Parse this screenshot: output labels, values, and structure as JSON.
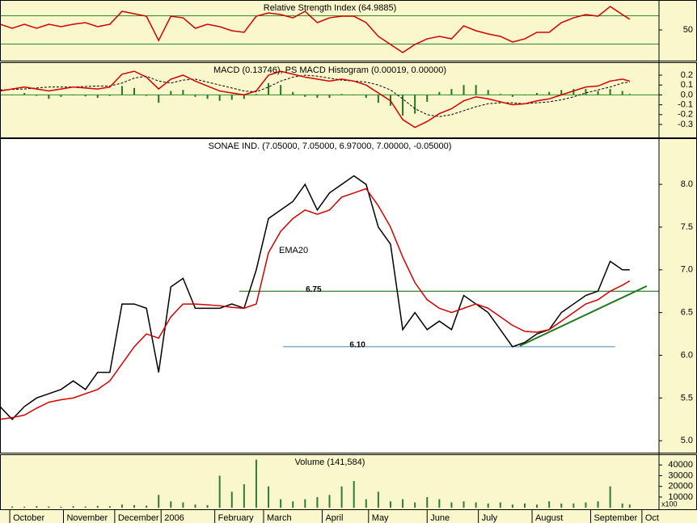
{
  "chart_data": [
    {
      "type": "line",
      "title": "Relative Strength Index (64.9885)",
      "x": [
        0,
        5,
        10,
        15,
        20,
        25,
        30,
        35,
        40,
        45,
        50,
        55,
        60,
        65,
        70,
        75,
        80,
        85,
        90,
        95,
        100,
        105,
        110,
        115,
        120,
        125,
        130,
        135,
        140,
        145,
        150,
        155,
        160,
        165,
        170,
        175,
        180,
        185,
        190,
        195,
        200,
        205,
        210,
        215,
        220,
        225,
        230,
        235,
        240,
        245,
        250,
        255,
        258
      ],
      "xlim": [
        0,
        270
      ],
      "ylim": [
        6.6,
        92.3
      ],
      "yticks": [
        50
      ],
      "hlines": [
        {
          "value": 70,
          "color": "#2e8b2e"
        },
        {
          "value": 30,
          "color": "#2e8b2e"
        }
      ],
      "series": [
        {
          "color": "#d40000",
          "values": [
            58,
            52.3,
            58,
            52.3,
            58,
            54.6,
            58,
            60.3,
            54.6,
            58,
            76.3,
            72.9,
            69.4,
            35.1,
            69.4,
            67.1,
            52.3,
            58,
            54.6,
            48.9,
            46.6,
            69.4,
            74,
            71.7,
            67.1,
            76.3,
            60.3,
            67.1,
            69.4,
            69.4,
            60.3,
            40.9,
            29.4,
            18,
            29.4,
            37.4,
            40.9,
            37.4,
            55.7,
            48.9,
            44.3,
            40.9,
            32.9,
            37.4,
            46.6,
            46.6,
            60.3,
            67.1,
            71.7,
            69.4,
            83.1,
            71.7,
            65
          ]
        }
      ]
    },
    {
      "type": "line",
      "title": "MACD (0.13746), PS MACD Histogram (0.00019, 0.00000)",
      "x": [
        0,
        5,
        10,
        15,
        20,
        25,
        30,
        35,
        40,
        45,
        50,
        55,
        60,
        65,
        70,
        75,
        80,
        85,
        90,
        95,
        100,
        105,
        110,
        115,
        120,
        125,
        130,
        135,
        140,
        145,
        150,
        155,
        160,
        165,
        170,
        175,
        180,
        185,
        190,
        195,
        200,
        205,
        210,
        215,
        220,
        225,
        230,
        235,
        240,
        245,
        250,
        255,
        258
      ],
      "xlim": [
        0,
        270
      ],
      "ylim": [
        -0.431,
        0.331
      ],
      "yticks": [
        0.2,
        0.1,
        {
          "value": 0,
          "label": "0.0"
        },
        -0.1,
        -0.2,
        -0.3
      ],
      "hlines": [
        {
          "value": 0,
          "color": "#2e8b2e"
        }
      ],
      "series": [
        {
          "kind": "bar",
          "color": "#1f7a1f",
          "values": [
            -0.01,
            0.005,
            0.02,
            -0.01,
            -0.04,
            -0.02,
            0,
            -0.015,
            -0.03,
            -0.01,
            0.09,
            0.07,
            -0.01,
            -0.08,
            0.04,
            0.05,
            -0.02,
            -0.04,
            -0.06,
            -0.05,
            -0.04,
            0.01,
            0.12,
            0.1,
            0.03,
            -0.02,
            -0.03,
            -0.03,
            0.01,
            0,
            -0.03,
            -0.08,
            -0.11,
            -0.21,
            -0.19,
            -0.07,
            0.03,
            0.06,
            0.1,
            0.1,
            0.05,
            0.01,
            -0.02,
            0,
            0.02,
            0.03,
            0.05,
            0.06,
            0.06,
            0.04,
            0.06,
            0.04,
            0.01
          ]
        },
        {
          "kind": "line",
          "dash": true,
          "color": "#000000",
          "values": [
            0.05,
            0.055,
            0.06,
            0.07,
            0.08,
            0.08,
            0.08,
            0.085,
            0.09,
            0.09,
            0.12,
            0.17,
            0.19,
            0.14,
            0.12,
            0.15,
            0.16,
            0.13,
            0.1,
            0.07,
            0.04,
            0.03,
            0.08,
            0.14,
            0.18,
            0.2,
            0.19,
            0.17,
            0.15,
            0.14,
            0.13,
            0.1,
            0.05,
            -0.04,
            -0.14,
            -0.2,
            -0.22,
            -0.2,
            -0.16,
            -0.12,
            -0.09,
            -0.08,
            -0.08,
            -0.09,
            -0.08,
            -0.07,
            -0.05,
            -0.02,
            0.02,
            0.05,
            0.08,
            0.12,
            0.13
          ]
        },
        {
          "kind": "line",
          "color": "#d40000",
          "values": [
            0.04,
            0.06,
            0.08,
            0.06,
            0.04,
            0.06,
            0.08,
            0.07,
            0.06,
            0.08,
            0.21,
            0.24,
            0.18,
            0.06,
            0.16,
            0.2,
            0.14,
            0.09,
            0.04,
            0.02,
            0,
            0.04,
            0.2,
            0.24,
            0.21,
            0.18,
            0.16,
            0.14,
            0.16,
            0.14,
            0.1,
            0.02,
            -0.06,
            -0.25,
            -0.33,
            -0.27,
            -0.19,
            -0.14,
            -0.06,
            -0.02,
            -0.04,
            -0.07,
            -0.1,
            -0.09,
            -0.06,
            -0.04,
            0,
            0.04,
            0.08,
            0.09,
            0.14,
            0.16,
            0.14
          ]
        }
      ]
    },
    {
      "type": "line",
      "title": "SONAE IND. (7.05000, 7.05000, 6.97000, 7.00000, -0.05000)",
      "x": [
        0,
        5,
        10,
        15,
        20,
        25,
        30,
        35,
        40,
        45,
        50,
        55,
        60,
        65,
        70,
        75,
        80,
        85,
        90,
        95,
        100,
        105,
        110,
        115,
        120,
        125,
        130,
        135,
        140,
        145,
        150,
        155,
        160,
        165,
        170,
        175,
        180,
        185,
        190,
        195,
        200,
        205,
        210,
        215,
        220,
        225,
        230,
        235,
        240,
        245,
        250,
        255,
        258
      ],
      "xlim": [
        0,
        270
      ],
      "ylim": [
        4.86,
        8.54
      ],
      "yticks": [
        {
          "value": 8,
          "label": "8.0"
        },
        7.5,
        {
          "value": 7,
          "label": "7.0"
        },
        6.5,
        {
          "value": 6,
          "label": "6.0"
        },
        5.5,
        {
          "value": 5,
          "label": "5.0"
        }
      ],
      "hlines": [
        {
          "value": 6.75,
          "label": "6.75",
          "x": [
            98,
            270
          ],
          "color": "#006400"
        },
        {
          "value": 6.1,
          "label": "6.10",
          "x": [
            116,
            252
          ],
          "color": "#4682b4"
        }
      ],
      "trendlines": [
        {
          "x": [
            213,
            265
          ],
          "values": [
            6.11,
            6.81
          ],
          "color": "#1e7a1e"
        }
      ],
      "series": [
        {
          "kind": "line",
          "color": "#000000",
          "values": [
            5.4,
            5.25,
            5.4,
            5.5,
            5.55,
            5.6,
            5.7,
            5.6,
            5.8,
            5.8,
            6.6,
            6.6,
            6.55,
            5.8,
            6.8,
            6.9,
            6.55,
            6.55,
            6.55,
            6.6,
            6.55,
            7,
            7.6,
            7.7,
            7.8,
            8,
            7.7,
            7.9,
            8,
            8.1,
            8,
            7.5,
            7.3,
            6.3,
            6.5,
            6.3,
            6.4,
            6.3,
            6.7,
            6.6,
            6.5,
            6.3,
            6.1,
            6.15,
            6.25,
            6.3,
            6.5,
            6.6,
            6.7,
            6.75,
            7.1,
            7,
            7
          ]
        },
        {
          "kind": "line",
          "name": "EMA20",
          "color": "#d40000",
          "values": [
            5.25,
            5.27,
            5.3,
            5.38,
            5.45,
            5.48,
            5.5,
            5.55,
            5.6,
            5.7,
            5.9,
            6.1,
            6.25,
            6.2,
            6.45,
            6.6,
            6.6,
            6.59,
            6.58,
            6.56,
            6.55,
            6.6,
            7.2,
            7.45,
            7.6,
            7.7,
            7.65,
            7.7,
            7.85,
            7.9,
            7.95,
            7.75,
            7.5,
            7.15,
            6.85,
            6.65,
            6.55,
            6.5,
            6.55,
            6.6,
            6.55,
            6.45,
            6.35,
            6.28,
            6.27,
            6.3,
            6.4,
            6.5,
            6.6,
            6.65,
            6.75,
            6.82,
            6.87
          ]
        }
      ]
    },
    {
      "type": "bar",
      "title": "Volume (141,584)",
      "unit_label": "x100",
      "x": [
        0,
        5,
        10,
        15,
        20,
        25,
        30,
        35,
        40,
        45,
        50,
        55,
        60,
        65,
        70,
        75,
        80,
        85,
        90,
        95,
        100,
        105,
        110,
        115,
        120,
        125,
        130,
        135,
        140,
        145,
        150,
        155,
        160,
        165,
        170,
        175,
        180,
        185,
        190,
        195,
        200,
        205,
        210,
        215,
        220,
        225,
        230,
        235,
        240,
        245,
        250,
        255,
        258
      ],
      "xlim": [
        0,
        270
      ],
      "ylim": [
        -1400,
        50000
      ],
      "yticks": [
        40000,
        30000,
        20000,
        10000
      ],
      "xticks": [
        {
          "value": 4,
          "label": "October"
        },
        {
          "value": 26,
          "label": "November"
        },
        {
          "value": 47,
          "label": "December"
        },
        {
          "value": 66,
          "label": "2006"
        },
        {
          "value": 88,
          "label": "February"
        },
        {
          "value": 108,
          "label": "March"
        },
        {
          "value": 132,
          "label": "April"
        },
        {
          "value": 151,
          "label": "May"
        },
        {
          "value": 175,
          "label": "June"
        },
        {
          "value": 196,
          "label": "July"
        },
        {
          "value": 218,
          "label": "August"
        },
        {
          "value": 242,
          "label": "September"
        },
        {
          "value": 263,
          "label": "Oct"
        }
      ],
      "series": [
        {
          "kind": "bar",
          "color": "#2e7d32",
          "values": [
            1500,
            1200,
            1000,
            1500,
            1200,
            1000,
            1500,
            1200,
            1800,
            1500,
            3000,
            2500,
            2000,
            12000,
            6000,
            5000,
            3000,
            2500,
            30000,
            15000,
            22000,
            45000,
            20000,
            8000,
            6000,
            8000,
            10000,
            12000,
            20000,
            25000,
            8000,
            15000,
            6000,
            8000,
            5000,
            10000,
            8000,
            5000,
            6000,
            5000,
            4000,
            5000,
            3000,
            4000,
            3000,
            6000,
            4000,
            4000,
            5000,
            6000,
            20000,
            4000,
            3000
          ]
        }
      ]
    }
  ]
}
